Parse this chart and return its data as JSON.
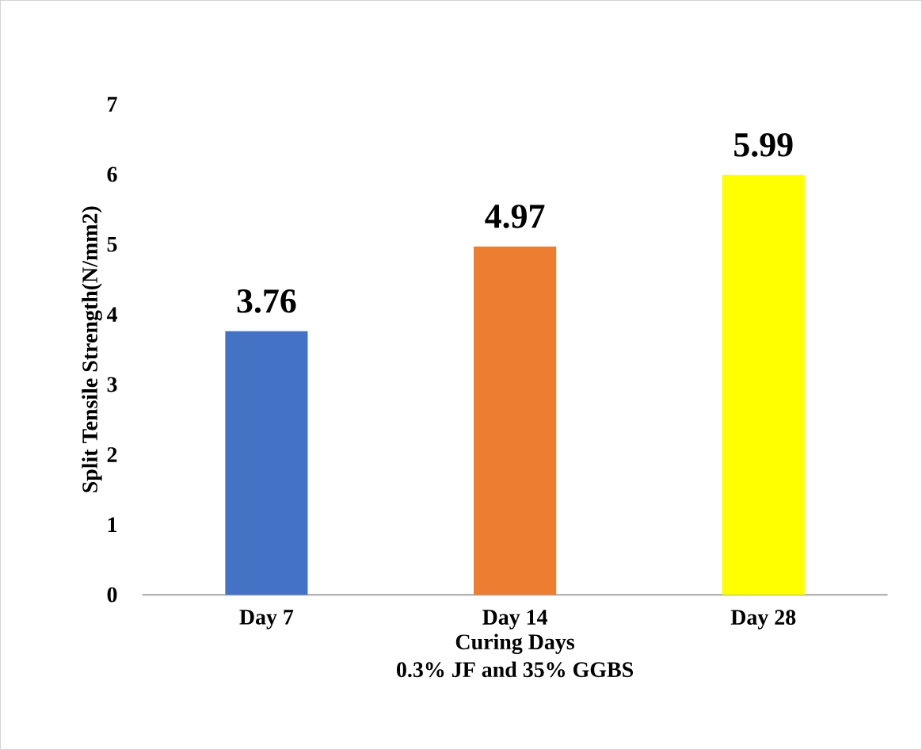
{
  "chart_data": {
    "type": "bar",
    "xlabel": "Curing Days",
    "ylabel": "Split Tensile Strength(N/mm2)",
    "annotations": [
      "0.3% JF and 35% GGBS"
    ],
    "categories": [
      "Day 7",
      "Day 14",
      "Day 28"
    ],
    "values": [
      3.76,
      4.97,
      5.99
    ],
    "colors": [
      "#4472c4",
      "#ed7d31",
      "#ffff00"
    ],
    "ylim": [
      0,
      7
    ],
    "yticks": [
      0,
      1,
      2,
      3,
      4,
      5,
      6,
      7
    ],
    "data_labels": true
  }
}
